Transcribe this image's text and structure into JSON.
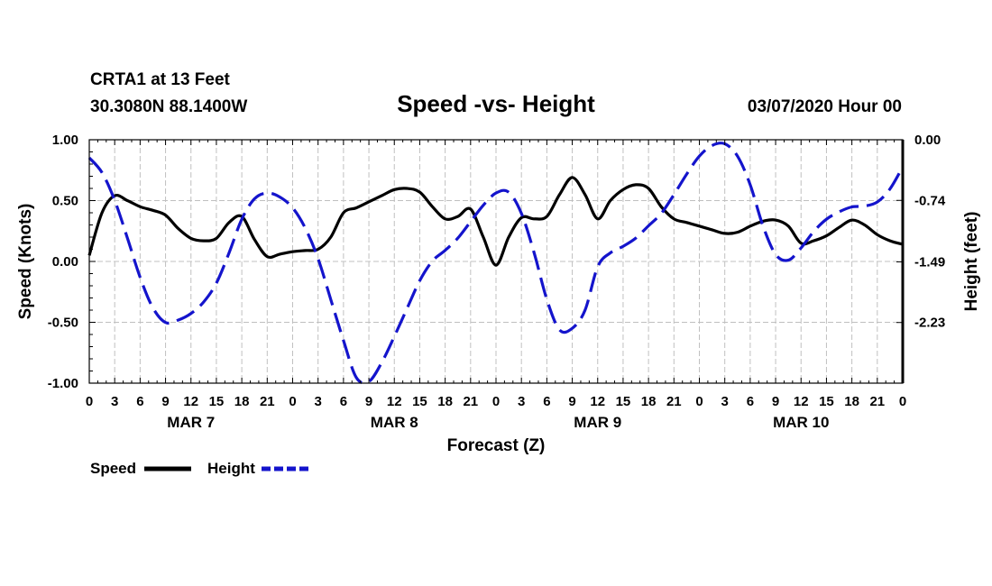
{
  "header": {
    "station": "CRTA1 at 13 Feet",
    "location": "30.3080N 88.1400W",
    "title": "Speed -vs- Height",
    "datetime": "03/07/2020 Hour 00"
  },
  "chart_data": {
    "type": "line",
    "title": "Speed -vs- Height",
    "xlabel": "Forecast (Z)",
    "ylabel_left": "Speed (Knots)",
    "ylabel_right": "Height (feet)",
    "x_unit": "forecast hour from 03/07/2020 00Z",
    "xlim": [
      0,
      96
    ],
    "ylim_left": [
      -1.0,
      1.0
    ],
    "ylim_right": [
      -2.97,
      0.0
    ],
    "grid": true,
    "left_ticks": [
      "1.00",
      "0.50",
      "0.00",
      "-0.50",
      "-1.00"
    ],
    "left_tick_values": [
      1.0,
      0.5,
      0.0,
      -0.5,
      -1.0
    ],
    "right_ticks": [
      "0.00",
      "-0.74",
      "-1.49",
      "-2.23"
    ],
    "right_tick_values": [
      0.0,
      -0.74,
      -1.49,
      -2.23
    ],
    "x_tick_labels": [
      "0",
      "3",
      "6",
      "9",
      "12",
      "15",
      "18",
      "21",
      "0",
      "3",
      "6",
      "9",
      "12",
      "15",
      "18",
      "21",
      "0",
      "3",
      "6",
      "9",
      "12",
      "15",
      "18",
      "21",
      "0",
      "3",
      "6",
      "9",
      "12",
      "15",
      "18",
      "21",
      "0"
    ],
    "day_labels": [
      {
        "label": "MAR 7",
        "hour": 12
      },
      {
        "label": "MAR 8",
        "hour": 36
      },
      {
        "label": "MAR 9",
        "hour": 60
      },
      {
        "label": "MAR 10",
        "hour": 84
      }
    ],
    "series": [
      {
        "name": "Speed",
        "axis": "left",
        "color": "#000000",
        "style": "solid",
        "x": [
          0,
          1.5,
          3,
          4.5,
          6,
          7.5,
          9,
          10.5,
          12,
          13.5,
          15,
          16.5,
          18,
          19.5,
          21,
          22.5,
          24,
          25.5,
          27,
          28.5,
          30,
          31.5,
          33,
          34.5,
          36,
          37.5,
          39,
          40.5,
          42,
          43.5,
          45,
          46.5,
          48,
          49.5,
          51,
          52.5,
          54,
          55.5,
          57,
          58.5,
          60,
          61.5,
          63,
          64.5,
          66,
          67.5,
          69,
          70.5,
          72,
          73.5,
          75,
          76.5,
          78,
          79.5,
          81,
          82.5,
          84,
          85.5,
          87,
          88.5,
          90,
          91.5,
          93,
          94.5,
          96
        ],
        "values": [
          0.05,
          0.4,
          0.54,
          0.5,
          0.45,
          0.42,
          0.38,
          0.27,
          0.19,
          0.17,
          0.19,
          0.32,
          0.37,
          0.18,
          0.04,
          0.06,
          0.08,
          0.09,
          0.1,
          0.2,
          0.4,
          0.44,
          0.49,
          0.54,
          0.59,
          0.6,
          0.57,
          0.45,
          0.35,
          0.37,
          0.43,
          0.2,
          -0.03,
          0.2,
          0.36,
          0.35,
          0.37,
          0.55,
          0.69,
          0.55,
          0.35,
          0.5,
          0.59,
          0.63,
          0.6,
          0.45,
          0.35,
          0.32,
          0.29,
          0.26,
          0.23,
          0.24,
          0.29,
          0.33,
          0.34,
          0.29,
          0.15,
          0.17,
          0.21,
          0.28,
          0.34,
          0.3,
          0.22,
          0.17,
          0.14
        ]
      },
      {
        "name": "Height",
        "axis": "right",
        "color": "#1414cc",
        "style": "dashed",
        "x": [
          0,
          1.5,
          3,
          4.5,
          6,
          7.5,
          9,
          10.5,
          12,
          13.5,
          15,
          16.5,
          18,
          19.5,
          21,
          22.5,
          24,
          25.5,
          27,
          28.5,
          30,
          31.5,
          33,
          34.5,
          36,
          37.5,
          39,
          40.5,
          42,
          43.5,
          45,
          46.5,
          48,
          49.5,
          51,
          52.5,
          54,
          55.5,
          57,
          58.5,
          60,
          61.5,
          63,
          64.5,
          66,
          67.5,
          69,
          70.5,
          72,
          73.5,
          75,
          76.5,
          78,
          79.5,
          81,
          82.5,
          84,
          85.5,
          87,
          88.5,
          90,
          91.5,
          93,
          94.5,
          96
        ],
        "values": [
          -0.22,
          -0.4,
          -0.74,
          -1.2,
          -1.68,
          -2.05,
          -2.23,
          -2.2,
          -2.12,
          -1.98,
          -1.75,
          -1.38,
          -0.97,
          -0.72,
          -0.65,
          -0.7,
          -0.83,
          -1.08,
          -1.45,
          -1.95,
          -2.45,
          -2.9,
          -2.95,
          -2.72,
          -2.4,
          -2.06,
          -1.72,
          -1.48,
          -1.35,
          -1.2,
          -1.0,
          -0.8,
          -0.65,
          -0.64,
          -0.9,
          -1.38,
          -1.95,
          -2.32,
          -2.3,
          -2.08,
          -1.55,
          -1.38,
          -1.3,
          -1.2,
          -1.05,
          -0.9,
          -0.67,
          -0.42,
          -0.2,
          -0.07,
          -0.05,
          -0.2,
          -0.55,
          -1.05,
          -1.4,
          -1.47,
          -1.32,
          -1.12,
          -0.97,
          -0.88,
          -0.82,
          -0.81,
          -0.76,
          -0.6,
          -0.33
        ]
      }
    ],
    "legend": {
      "position": "bottom-left",
      "entries": [
        {
          "label": "Speed",
          "color": "#000000",
          "style": "solid"
        },
        {
          "label": "Height",
          "color": "#1414cc",
          "style": "dashed"
        }
      ]
    }
  }
}
